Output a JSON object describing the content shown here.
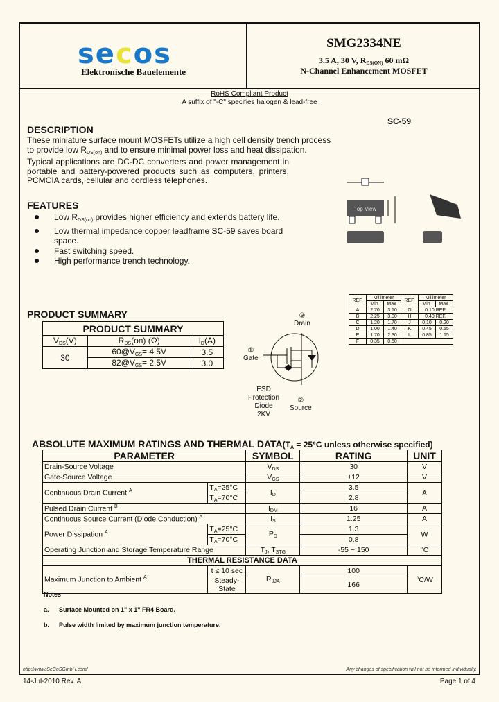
{
  "header": {
    "logo_text": "secos",
    "logo_sub": "Elektronische Bauelemente",
    "part": "SMG2334NE",
    "spec_pre": "3.5 A, 30 V, R",
    "spec_sub": "DS(ON)",
    "spec_post": " 60 mΩ",
    "type": "N-Channel Enhancement MOSFET"
  },
  "rohs": {
    "line1": "RoHS Compliant Product",
    "line2": "A suffix of \"-C\" specifies halogen & lead-free"
  },
  "package": {
    "name": "SC-59",
    "top_view": "Top View",
    "dims": {
      "headers": [
        "REF.",
        "Millimeter",
        "REF.",
        "Millimeter"
      ],
      "sub": [
        "Min.",
        "Max.",
        "Min.",
        "Max."
      ],
      "rows": [
        [
          "A",
          "2.70",
          "3.10",
          "G",
          "0.10 REF."
        ],
        [
          "B",
          "2.25",
          "3.00",
          "H",
          "0.40 REF."
        ],
        [
          "C",
          "1.20",
          "1.70",
          "J",
          "0.10",
          "0.20"
        ],
        [
          "D",
          "1.00",
          "1.40",
          "K",
          "0.45",
          "0.55"
        ],
        [
          "E",
          "1.70",
          "2.30",
          "L",
          "0.85",
          "1.15"
        ],
        [
          "F",
          "0.35",
          "0.50"
        ]
      ]
    }
  },
  "description": {
    "title": "DESCRIPTION",
    "l1": "These miniature surface mount MOSFETs utilize a high cell density trench process",
    "l2a": "to provide low R",
    "l2sub": "DS(on)",
    "l2b": " and to ensure minimal power loss and heat dissipation.",
    "l3": "Typical applications are DC-DC converters and power management in portable and battery-powered products such as computers, printers, PCMCIA cards, cellular and cordless telephones."
  },
  "features": {
    "title": "FEATURES",
    "f1a": "Low R",
    "f1sub": "DS(on)",
    "f1b": " provides higher efficiency and extends battery life.",
    "f2": "Low thermal impedance copper leadframe SC-59 saves board",
    "f2b": "space.",
    "f3": "Fast switching speed.",
    "f4": "High performance trench technology."
  },
  "summary": {
    "title": "PRODUCT SUMMARY",
    "table_title": "PRODUCT SUMMARY",
    "vds": "30",
    "r1": "60@V",
    "r1b": "= 4.5V",
    "r2": "82@V",
    "r2b": "= 2.5V",
    "id1": "3.5",
    "id2": "3.0"
  },
  "schematic": {
    "drain_num": "③",
    "drain": "Drain",
    "gate_num": "①",
    "gate": "Gate",
    "source_num": "②",
    "source": "Source",
    "esd1": "ESD",
    "esd2": "Protection",
    "esd3": "Diode",
    "esd4": "2KV"
  },
  "ratings": {
    "title": "ABSOLUTE MAXIMUM RATINGS AND THERMAL DATA",
    "cond": "(T",
    "cond_sub": "A",
    "cond_b": " = 25°C unless otherwise specified)",
    "headers": [
      "PARAMETER",
      "SYMBOL",
      "RATING",
      "UNIT"
    ],
    "vds": {
      "p": "Drain-Source Voltage",
      "s": "V",
      "ss": "DS",
      "r": "30",
      "u": "V"
    },
    "vgs": {
      "p": "Gate-Source Voltage",
      "s": "V",
      "ss": "GS",
      "r": "±12",
      "u": "V"
    },
    "id": {
      "p": "Continuous Drain Current",
      "n": "A",
      "c1": "=25°C",
      "c2": "=70°C",
      "s": "I",
      "ss": "D",
      "r1": "3.5",
      "r2": "2.8",
      "u": "A"
    },
    "idm": {
      "p": "Pulsed Drain Current",
      "n": "B",
      "s": "I",
      "ss": "DM",
      "r": "16",
      "u": "A"
    },
    "is": {
      "p": "Continuous Source Current (Diode Conduction)",
      "n": "A",
      "s": "I",
      "ss": "S",
      "r": "1.25",
      "u": "A"
    },
    "pd": {
      "p": "Power Dissipation",
      "n": "A",
      "c1": "=25°C",
      "c2": "=70°C",
      "s": "P",
      "ss": "D",
      "r1": "1.3",
      "r2": "0.8",
      "u": "W"
    },
    "tj": {
      "p": "Operating Junction and Storage Temperature Range",
      "s": "T",
      "ss": "J",
      "s2": ", T",
      "ss2": "STG",
      "r": "-55 ~ 150",
      "u": "°C"
    },
    "thermal": "THERMAL RESISTANCE DATA",
    "rja": {
      "p": "Maximum Junction to Ambient",
      "n": "A",
      "c1": "t ≤ 10 sec",
      "c2": "Steady-State",
      "s": "R",
      "ss": "θJA",
      "r1": "100",
      "r2": "166",
      "u": "°C/W"
    }
  },
  "notes": {
    "title": "Notes",
    "a_l": "a.",
    "a": "Surface Mounted on 1\" x 1\" FR4 Board.",
    "b_l": "b.",
    "b": "Pulse width limited by maximum junction temperature."
  },
  "footer": {
    "url": "http://www.SeCoSGmbH.com/",
    "disclaimer": "Any changes of specification will not be informed individually.",
    "date": "14-Jul-2010 Rev. A",
    "page": "Page 1 of 4"
  }
}
